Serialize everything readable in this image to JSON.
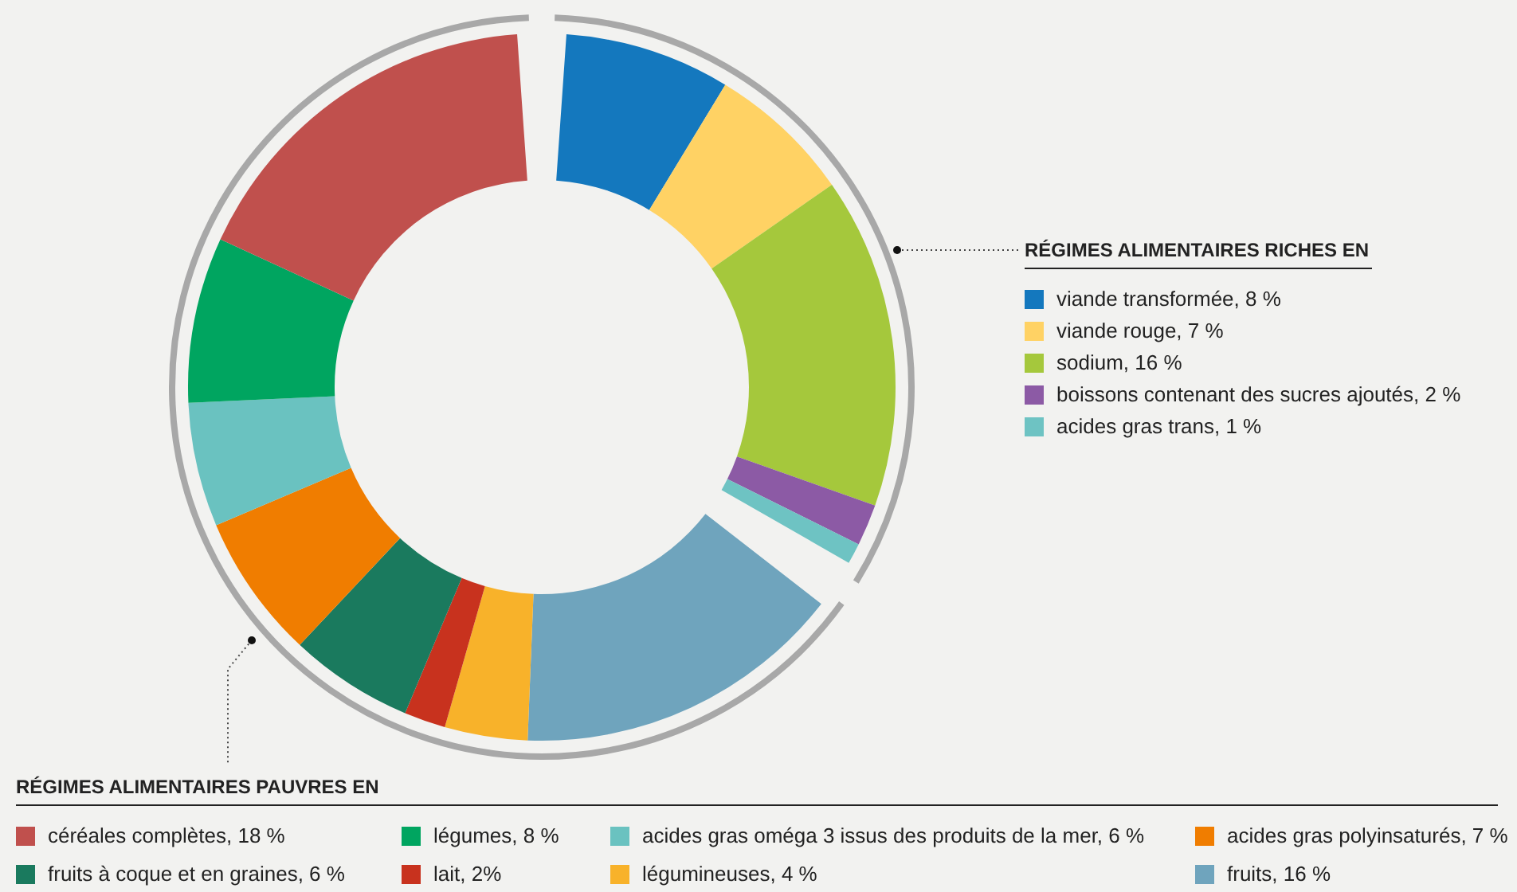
{
  "chart_data": {
    "type": "donut",
    "legend": "right",
    "categories": [
      "viande transformée, 8 %",
      "viande rouge, 7 %",
      "sodium, 16 %",
      "boissons contenant des sucres ajoutés, 2 %",
      "acides gras trans, 1 %",
      "fruits, 16 %",
      "légumineuses, 4 %",
      "lait, 2%",
      "fruits à coque et en graines, 6 %",
      "acides gras polyinsaturés, 7 %",
      "acides gras oméga 3 issus des produits de la mer, 6 %",
      "légumes, 8 %",
      "céréales complètes, 18 %"
    ],
    "values": [
      8,
      7,
      16,
      2,
      1,
      16,
      4,
      2,
      6,
      7,
      6,
      8,
      18
    ],
    "colors": [
      "#1478be",
      "#ffd264",
      "#a5c83c",
      "#8c5aa5",
      "#6ec3c3",
      "#6fa4bd",
      "#f8b22a",
      "#c8321e",
      "#1a7a5e",
      "#f07d00",
      "#6ac2c0",
      "#00a560",
      "#c0504d"
    ],
    "annotations": [
      "RÉGIMES ALIMENTAIRES RICHES EN",
      "RÉGIMES ALIMENTAIRES PAUVRES EN"
    ]
  }
}
